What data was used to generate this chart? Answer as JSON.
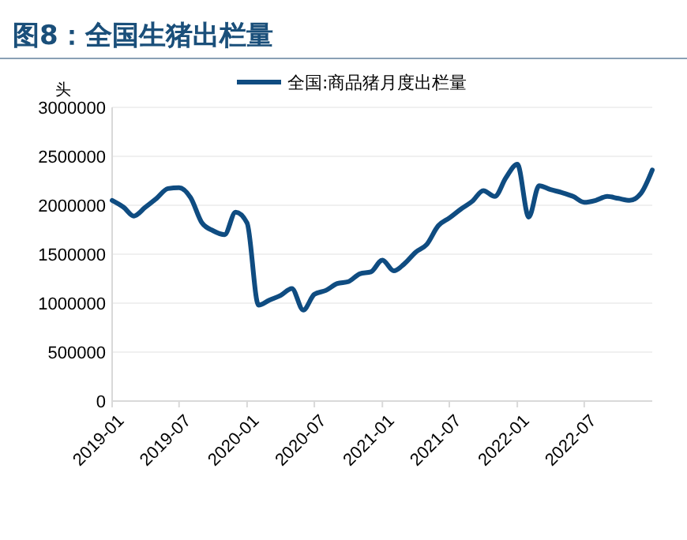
{
  "chart_data": {
    "type": "line",
    "title": "图8：全国生猪出栏量",
    "ylabel": "头",
    "x": [
      "2019-01",
      "2019-02",
      "2019-03",
      "2019-04",
      "2019-05",
      "2019-06",
      "2019-07",
      "2019-08",
      "2019-09",
      "2019-10",
      "2019-11",
      "2019-12",
      "2020-01",
      "2020-02",
      "2020-03",
      "2020-04",
      "2020-05",
      "2020-06",
      "2020-07",
      "2020-08",
      "2020-09",
      "2020-10",
      "2020-11",
      "2020-12",
      "2021-01",
      "2021-02",
      "2021-03",
      "2021-04",
      "2021-05",
      "2021-06",
      "2021-07",
      "2021-08",
      "2021-09",
      "2021-10",
      "2021-11",
      "2021-12",
      "2022-01",
      "2022-02",
      "2022-03",
      "2022-04",
      "2022-05",
      "2022-06",
      "2022-07",
      "2022-08",
      "2022-09",
      "2022-10",
      "2022-11",
      "2022-12",
      "2023-01"
    ],
    "series": [
      {
        "name": "全国:商品猪月度出栏量",
        "color": "#0f4c81",
        "values": [
          2050000,
          1980000,
          1890000,
          1980000,
          2070000,
          2170000,
          2180000,
          2080000,
          1820000,
          1740000,
          1700000,
          1930000,
          1820000,
          980000,
          1030000,
          1080000,
          1150000,
          930000,
          1090000,
          1130000,
          1200000,
          1220000,
          1300000,
          1320000,
          1440000,
          1330000,
          1400000,
          1520000,
          1600000,
          1790000,
          1870000,
          1960000,
          2040000,
          2150000,
          2090000,
          2280000,
          2420000,
          1880000,
          2200000,
          2160000,
          2130000,
          2090000,
          2030000,
          2050000,
          2090000,
          2070000,
          2050000,
          2120000,
          2360000
        ]
      }
    ],
    "ylim": [
      0,
      3000000
    ],
    "yticks": [
      0,
      500000,
      1000000,
      1500000,
      2000000,
      2500000,
      3000000
    ],
    "xlim": [
      "2019-01",
      "2023-01"
    ],
    "xticks": [
      {
        "value": "2019-01",
        "label": "2019-01"
      },
      {
        "value": "2019-07",
        "label": "2019-07"
      },
      {
        "value": "2020-01",
        "label": "2020-01"
      },
      {
        "value": "2020-07",
        "label": "2020-07"
      },
      {
        "value": "2021-01",
        "label": "2021-01"
      },
      {
        "value": "2021-07",
        "label": "2021-07"
      },
      {
        "value": "2022-01",
        "label": "2022-01"
      },
      {
        "value": "2022-07",
        "label": "2022-07"
      }
    ],
    "grid": "y",
    "legend": "top",
    "marker": "none",
    "line_style": "solid"
  }
}
